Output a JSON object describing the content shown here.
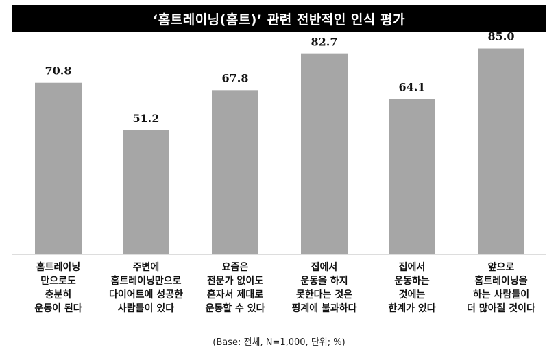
{
  "title": "‘홈트레이닝(홈트)’ 관련 전반적인 인식 평가",
  "footnote": "(Base: 전체, N=1,000, 단위; %)",
  "colors": {
    "bar": "#a6a6a6",
    "title_bg": "#000000",
    "title_text": "#ffffff"
  },
  "chart_data": {
    "type": "bar",
    "title": "‘홈트레이닝(홈트)’ 관련 전반적인 인식 평가",
    "xlabel": "",
    "ylabel": "",
    "ylim": [
      0,
      100
    ],
    "grid": false,
    "categories": [
      [
        "홈트레이닝",
        "만으로도",
        "충분히",
        "운동이 된다"
      ],
      [
        "주변에",
        "홈트레이닝만으로",
        "다이어트에 성공한",
        "사람들이 있다"
      ],
      [
        "요즘은",
        "전문가 없이도",
        "혼자서 제대로",
        "운동할 수 있다"
      ],
      [
        "집에서",
        "운동을 하지",
        "못한다는 것은",
        "핑계에 불과하다"
      ],
      [
        "집에서",
        "운동하는",
        "것에는",
        "한계가 있다"
      ],
      [
        "앞으로",
        "홈트레이닝을",
        "하는 사람들이",
        "더 많아질 것이다"
      ]
    ],
    "values": [
      70.8,
      51.2,
      67.8,
      82.7,
      64.1,
      85.0
    ],
    "value_labels": [
      "70.8",
      "51.2",
      "67.8",
      "82.7",
      "64.1",
      "85.0"
    ]
  }
}
